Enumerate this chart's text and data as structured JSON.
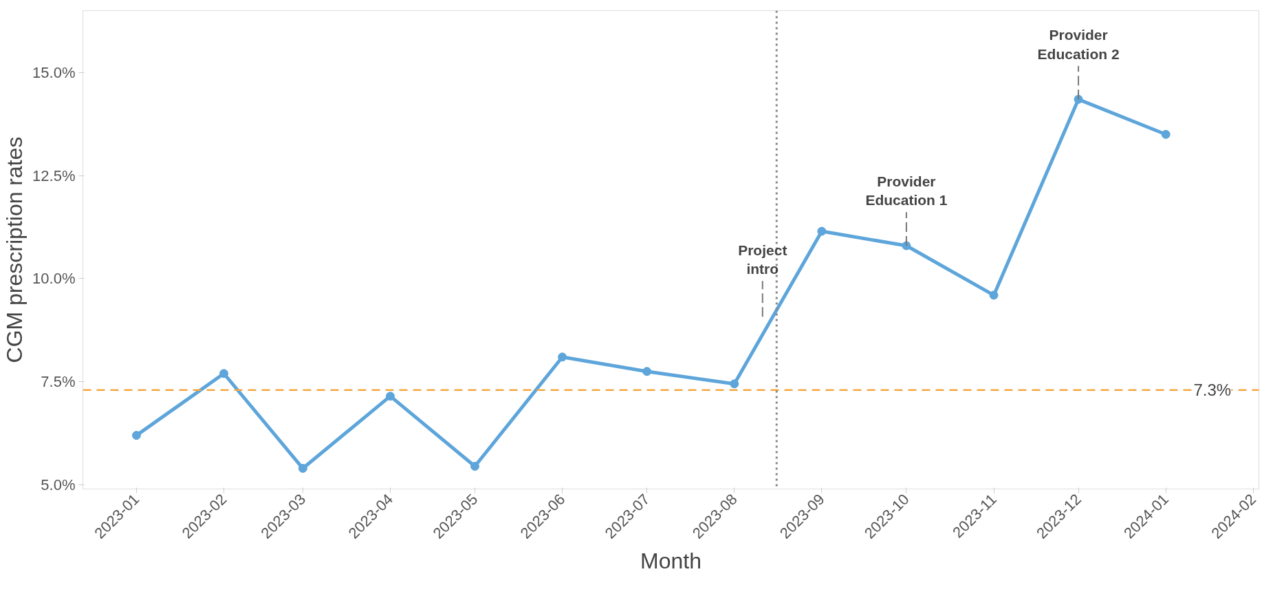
{
  "chart_data": {
    "type": "line",
    "xlabel": "Month",
    "ylabel": "CGM prescription rates",
    "x": [
      "2023-01",
      "2023-02",
      "2023-03",
      "2023-04",
      "2023-05",
      "2023-06",
      "2023-07",
      "2023-08",
      "2023-09",
      "2023-10",
      "2023-11",
      "2023-12",
      "2024-01"
    ],
    "series": [
      {
        "color": "#5da5da",
        "values": [
          6.2,
          7.7,
          5.4,
          7.15,
          5.45,
          8.1,
          7.75,
          7.45,
          11.15,
          10.8,
          9.6,
          14.35,
          13.5
        ]
      }
    ],
    "marker": "circle",
    "line_style": "solid",
    "grid": false,
    "xlim": [
      "2022-12-13",
      "2024-02-03"
    ],
    "ylim": [
      4.9,
      16.5
    ],
    "xticks": [
      "2023-01",
      "2023-02",
      "2023-03",
      "2023-04",
      "2023-05",
      "2023-06",
      "2023-07",
      "2023-08",
      "2023-09",
      "2023-10",
      "2023-11",
      "2023-12",
      "2024-01",
      "2024-02"
    ],
    "yticks": [
      {
        "value": 5,
        "label": "5.0%"
      },
      {
        "value": 7.5,
        "label": "7.5%"
      },
      {
        "value": 10,
        "label": "10.0%"
      },
      {
        "value": 12.5,
        "label": "12.5%"
      },
      {
        "value": 15,
        "label": "15.0%"
      }
    ],
    "ref_lines": [
      {
        "axis": "y",
        "value": 7.3,
        "label": "7.3%",
        "color": "#f5a742",
        "line_style": "dashed"
      },
      {
        "axis": "x",
        "value": "2023-08-16",
        "label": "Project intro",
        "color": "#888888",
        "line_style": "dotted"
      }
    ],
    "annotations": [
      {
        "text": "Provider Education 1",
        "x": "2023-10",
        "y": 10.8
      },
      {
        "text": "Provider Education 2",
        "x": "2023-12",
        "y": 14.35
      }
    ]
  }
}
